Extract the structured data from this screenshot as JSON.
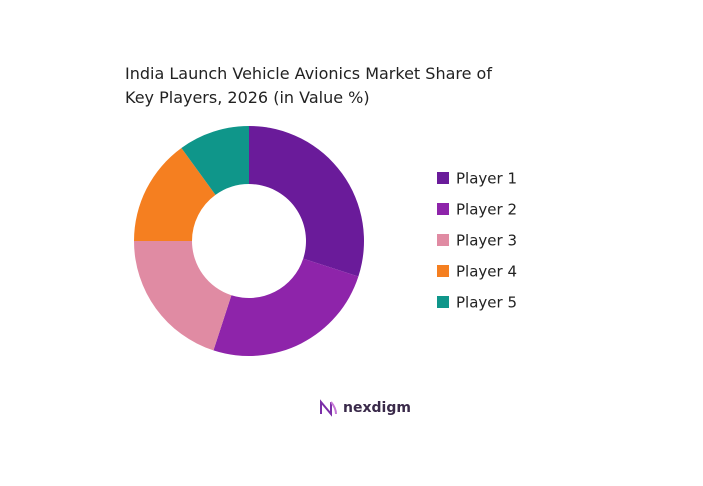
{
  "chart_data": {
    "type": "donut",
    "title": "India Launch Vehicle Avionics Market Share of Key Players, 2026 (in Value %)",
    "categories": [
      "Player 1",
      "Player 2",
      "Player 3",
      "Player 4",
      "Player 5"
    ],
    "values": [
      30,
      25,
      20,
      15,
      10
    ],
    "colors": [
      "#6a1b9a",
      "#8e24aa",
      "#e08ba3",
      "#f57f20",
      "#0f968a"
    ],
    "legend": "right",
    "logo": "nexdigm"
  }
}
